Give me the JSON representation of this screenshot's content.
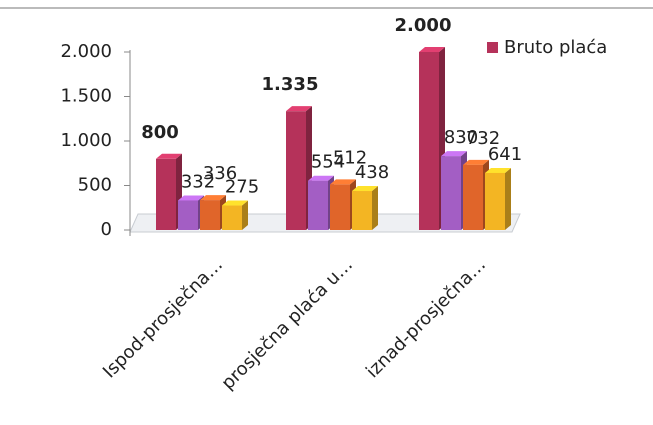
{
  "chart_data": {
    "type": "bar3d",
    "categories": [
      "Ispod-prosječna…",
      "prosječna plaća u…",
      "iznad-prosječna…"
    ],
    "series": [
      {
        "name": "Bruto plaća",
        "color": "#b5325a",
        "values": [
          800,
          1335,
          2000
        ],
        "value_labels": [
          "800",
          "1.335",
          "2.000"
        ]
      },
      {
        "color": "#a35ec4",
        "values": [
          332,
          554,
          830
        ]
      },
      {
        "color": "#e0652a",
        "values": [
          336,
          512,
          732
        ]
      },
      {
        "color": "#f3b523",
        "values": [
          275,
          438,
          641
        ]
      }
    ],
    "ylim": [
      0,
      2000
    ],
    "yticks": [
      0,
      {
        "value": 500,
        "label": "500"
      },
      {
        "value": 1000,
        "label": "1.000"
      },
      {
        "value": 1500,
        "label": "1.500"
      },
      {
        "value": 2000,
        "label": "2.000"
      }
    ],
    "legend": "top-right"
  }
}
